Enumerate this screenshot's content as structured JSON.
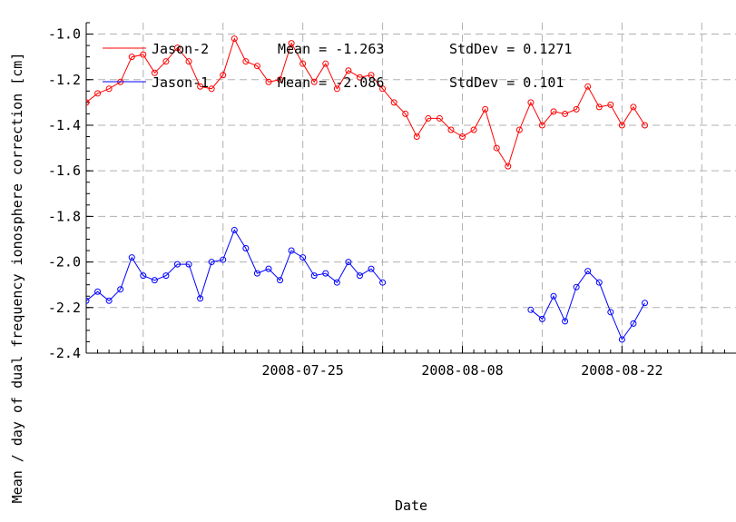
{
  "chart_data": {
    "type": "line",
    "title": "",
    "xlabel": "Date",
    "ylabel": "Mean / day of dual frequency ionosphere correction [cm]",
    "xlim": [
      "2008-07-06",
      "2008-09-01"
    ],
    "ylim": [
      -2.4,
      -0.95
    ],
    "x_ticks": [
      "2008-07-25",
      "2008-08-08",
      "2008-08-22"
    ],
    "y_ticks": [
      "-1.0",
      "-1.2",
      "-1.4",
      "-1.6",
      "-1.8",
      "-2.0",
      "-2.2",
      "-2.4"
    ],
    "grid": true,
    "legend_position": "top-left",
    "series": [
      {
        "name": "Jason-2",
        "mean_label": "Mean = -1.263",
        "std_label": "StdDev = 0.1271",
        "color": "#ff0000",
        "marker": "circle",
        "points": [
          [
            "2008-07-06",
            -1.3
          ],
          [
            "2008-07-07",
            -1.26
          ],
          [
            "2008-07-08",
            -1.24
          ],
          [
            "2008-07-09",
            -1.21
          ],
          [
            "2008-07-10",
            -1.1
          ],
          [
            "2008-07-11",
            -1.09
          ],
          [
            "2008-07-12",
            -1.17
          ],
          [
            "2008-07-13",
            -1.12
          ],
          [
            "2008-07-14",
            -1.06
          ],
          [
            "2008-07-15",
            -1.12
          ],
          [
            "2008-07-16",
            -1.23
          ],
          [
            "2008-07-17",
            -1.24
          ],
          [
            "2008-07-18",
            -1.18
          ],
          [
            "2008-07-19",
            -1.02
          ],
          [
            "2008-07-20",
            -1.12
          ],
          [
            "2008-07-21",
            -1.14
          ],
          [
            "2008-07-22",
            -1.21
          ],
          [
            "2008-07-23",
            -1.2
          ],
          [
            "2008-07-24",
            -1.04
          ],
          [
            "2008-07-25",
            -1.13
          ],
          [
            "2008-07-26",
            -1.21
          ],
          [
            "2008-07-27",
            -1.13
          ],
          [
            "2008-07-28",
            -1.24
          ],
          [
            "2008-07-29",
            -1.16
          ],
          [
            "2008-07-30",
            -1.19
          ],
          [
            "2008-07-31",
            -1.18
          ],
          [
            "2008-08-01",
            -1.24
          ],
          [
            "2008-08-02",
            -1.3
          ],
          [
            "2008-08-03",
            -1.35
          ],
          [
            "2008-08-04",
            -1.45
          ],
          [
            "2008-08-05",
            -1.37
          ],
          [
            "2008-08-06",
            -1.37
          ],
          [
            "2008-08-07",
            -1.42
          ],
          [
            "2008-08-08",
            -1.45
          ],
          [
            "2008-08-09",
            -1.42
          ],
          [
            "2008-08-10",
            -1.33
          ],
          [
            "2008-08-11",
            -1.5
          ],
          [
            "2008-08-12",
            -1.58
          ],
          [
            "2008-08-13",
            -1.42
          ],
          [
            "2008-08-14",
            -1.3
          ],
          [
            "2008-08-15",
            -1.4
          ],
          [
            "2008-08-16",
            -1.34
          ],
          [
            "2008-08-17",
            -1.35
          ],
          [
            "2008-08-18",
            -1.33
          ],
          [
            "2008-08-19",
            -1.23
          ],
          [
            "2008-08-20",
            -1.32
          ],
          [
            "2008-08-21",
            -1.31
          ],
          [
            "2008-08-22",
            -1.4
          ],
          [
            "2008-08-23",
            -1.32
          ],
          [
            "2008-08-24",
            -1.4
          ]
        ]
      },
      {
        "name": "Jason-1",
        "mean_label": "Mean = -2.086",
        "std_label": "StdDev = 0.101",
        "color": "#0000ff",
        "marker": "circle",
        "segments": [
          [
            [
              "2008-07-06",
              -2.17
            ],
            [
              "2008-07-07",
              -2.13
            ],
            [
              "2008-07-08",
              -2.17
            ],
            [
              "2008-07-09",
              -2.12
            ],
            [
              "2008-07-10",
              -1.98
            ],
            [
              "2008-07-11",
              -2.06
            ],
            [
              "2008-07-12",
              -2.08
            ],
            [
              "2008-07-13",
              -2.06
            ],
            [
              "2008-07-14",
              -2.01
            ],
            [
              "2008-07-15",
              -2.01
            ],
            [
              "2008-07-16",
              -2.16
            ],
            [
              "2008-07-17",
              -2.0
            ],
            [
              "2008-07-18",
              -1.99
            ],
            [
              "2008-07-19",
              -1.86
            ],
            [
              "2008-07-20",
              -1.94
            ],
            [
              "2008-07-21",
              -2.05
            ],
            [
              "2008-07-22",
              -2.03
            ],
            [
              "2008-07-23",
              -2.08
            ],
            [
              "2008-07-24",
              -1.95
            ],
            [
              "2008-07-25",
              -1.98
            ],
            [
              "2008-07-26",
              -2.06
            ],
            [
              "2008-07-27",
              -2.05
            ],
            [
              "2008-07-28",
              -2.09
            ],
            [
              "2008-07-29",
              -2.0
            ],
            [
              "2008-07-30",
              -2.06
            ],
            [
              "2008-07-31",
              -2.03
            ],
            [
              "2008-08-01",
              -2.09
            ]
          ],
          [
            [
              "2008-08-14",
              -2.21
            ],
            [
              "2008-08-15",
              -2.25
            ],
            [
              "2008-08-16",
              -2.15
            ],
            [
              "2008-08-17",
              -2.26
            ],
            [
              "2008-08-18",
              -2.11
            ],
            [
              "2008-08-19",
              -2.04
            ],
            [
              "2008-08-20",
              -2.09
            ],
            [
              "2008-08-21",
              -2.22
            ],
            [
              "2008-08-22",
              -2.34
            ],
            [
              "2008-08-23",
              -2.27
            ],
            [
              "2008-08-24",
              -2.18
            ]
          ]
        ]
      }
    ]
  }
}
